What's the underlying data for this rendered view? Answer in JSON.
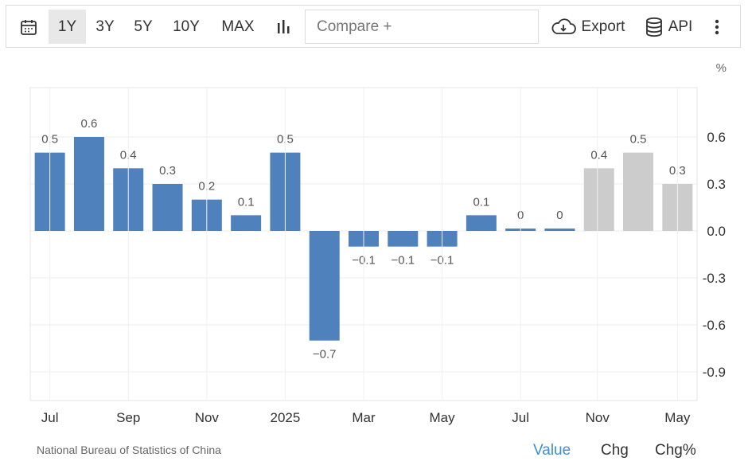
{
  "toolbar": {
    "ranges": [
      "1Y",
      "3Y",
      "5Y",
      "10Y",
      "MAX"
    ],
    "active_range": "1Y",
    "compare_placeholder": "Compare +",
    "export_label": "Export",
    "api_label": "API",
    "icons": [
      "calendar-icon",
      "bar-chart-icon",
      "cloud-download-icon",
      "database-icon",
      "more-vertical-icon"
    ]
  },
  "chart_data": {
    "type": "bar",
    "unit": "%",
    "x_ticks": [
      "Jul",
      "Sep",
      "Nov",
      "2025",
      "Mar",
      "May",
      "Jul",
      "Nov",
      "May"
    ],
    "y_ticks": [
      "0.6",
      "0.3",
      "0.0",
      "-0.3",
      "-0.6",
      "-0.9"
    ],
    "ylim": [
      -1.1,
      0.9
    ],
    "grid": true,
    "series": [
      {
        "values": [
          0.5,
          0.6,
          0.4,
          0.3,
          0.2,
          0.1,
          0.5,
          -0.7,
          -0.1,
          -0.1,
          -0.1,
          0.1,
          0.01,
          0.01
        ],
        "labels": [
          "0.5",
          "0.6",
          "0.4",
          "0.3",
          "0.2",
          "0.1",
          "0.5",
          "−0.7",
          "−0.1",
          "−0.1",
          "−0.1",
          "0.1",
          "0",
          "0"
        ],
        "color": "#4f81bd"
      },
      {
        "values": [
          0.4,
          0.5,
          0.3
        ],
        "labels": [
          "0.4",
          "0.5",
          "0.3"
        ],
        "color": "#cccccc"
      }
    ],
    "forecast_color": "#cccccc",
    "actual_color": "#4f81bd"
  },
  "footer": {
    "source": "National Bureau of Statistics of China",
    "modes": [
      "Value",
      "Chg",
      "Chg%"
    ],
    "active_mode": "Value",
    "active_color": "#3a8fd9"
  }
}
